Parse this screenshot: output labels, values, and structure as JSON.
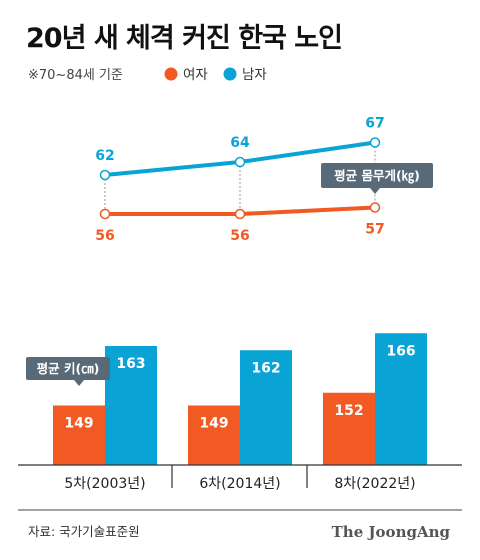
{
  "title": "20년 새 체격 커진 한국 노인",
  "note": "※70~84세 기준",
  "legend": [
    {
      "label": "여자",
      "color": "#f15a22"
    },
    {
      "label": "남자",
      "color": "#0aa3d6"
    }
  ],
  "weight_label": "평균 몸무게(㎏)",
  "height_label": "평균 키(㎝)",
  "source": "자료: 국가기술표준원",
  "brand": "The JoongAng",
  "chart_data": [
    {
      "type": "line",
      "categories": [
        "5차(2003년)",
        "6차(2014년)",
        "8차(2022년)"
      ],
      "series": [
        {
          "name": "남자",
          "values": [
            62,
            64,
            67
          ],
          "color": "#0aa3d6"
        },
        {
          "name": "여자",
          "values": [
            56,
            56,
            57
          ],
          "color": "#f15a22"
        }
      ],
      "ylabel": "평균 몸무게(㎏)"
    },
    {
      "type": "bar",
      "categories": [
        "5차(2003년)",
        "6차(2014년)",
        "8차(2022년)"
      ],
      "series": [
        {
          "name": "여자",
          "values": [
            149,
            149,
            152
          ],
          "color": "#f15a22"
        },
        {
          "name": "남자",
          "values": [
            163,
            162,
            166
          ],
          "color": "#0aa3d6"
        }
      ],
      "ylabel": "평균 키(㎝)"
    }
  ]
}
